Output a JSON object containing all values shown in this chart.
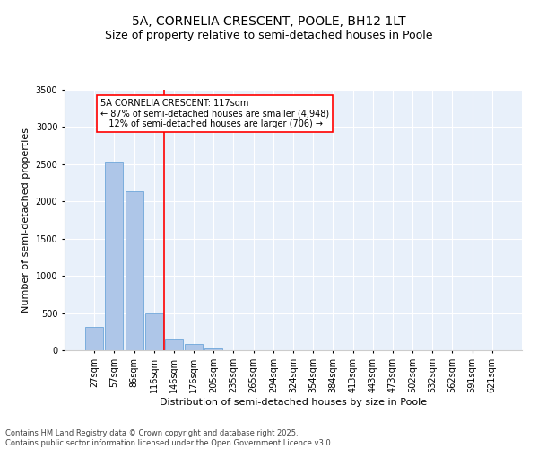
{
  "title_line1": "5A, CORNELIA CRESCENT, POOLE, BH12 1LT",
  "title_line2": "Size of property relative to semi-detached houses in Poole",
  "xlabel": "Distribution of semi-detached houses by size in Poole",
  "ylabel": "Number of semi-detached properties",
  "categories": [
    "27sqm",
    "57sqm",
    "86sqm",
    "116sqm",
    "146sqm",
    "176sqm",
    "205sqm",
    "235sqm",
    "265sqm",
    "294sqm",
    "324sqm",
    "354sqm",
    "384sqm",
    "413sqm",
    "443sqm",
    "473sqm",
    "502sqm",
    "532sqm",
    "562sqm",
    "591sqm",
    "621sqm"
  ],
  "values": [
    310,
    2540,
    2140,
    500,
    150,
    90,
    20,
    5,
    2,
    1,
    0,
    0,
    0,
    0,
    0,
    0,
    0,
    0,
    0,
    0,
    0
  ],
  "bar_color": "#aec6e8",
  "bar_edge_color": "#5b9bd5",
  "marker_line_index": 3,
  "annotation_text": "5A CORNELIA CRESCENT: 117sqm\n← 87% of semi-detached houses are smaller (4,948)\n   12% of semi-detached houses are larger (706) →",
  "ylim": [
    0,
    3500
  ],
  "yticks": [
    0,
    500,
    1000,
    1500,
    2000,
    2500,
    3000,
    3500
  ],
  "bg_color": "#e8f0fa",
  "footer_line1": "Contains HM Land Registry data © Crown copyright and database right 2025.",
  "footer_line2": "Contains public sector information licensed under the Open Government Licence v3.0.",
  "title_fontsize": 10,
  "subtitle_fontsize": 9,
  "axis_label_fontsize": 8,
  "tick_fontsize": 7,
  "annotation_fontsize": 7,
  "footer_fontsize": 6
}
